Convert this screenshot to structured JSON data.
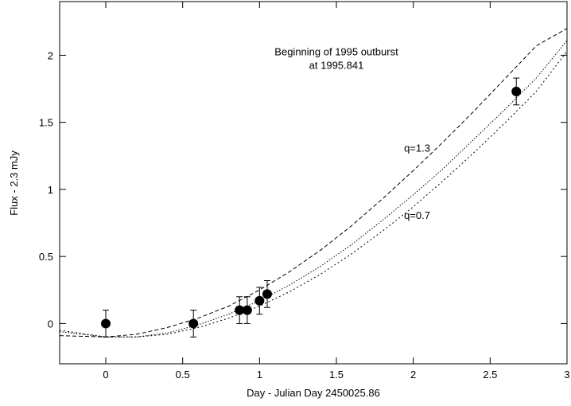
{
  "chart_data": {
    "type": "scatter",
    "title": "",
    "xlabel": "Day - Julian Day 2450025.86",
    "ylabel": "Flux - 2.3 mJy",
    "xlim": [
      -0.3,
      3.0
    ],
    "ylim": [
      -0.3,
      2.4
    ],
    "x_ticks": [
      0,
      0.5,
      1,
      1.5,
      2,
      2.5,
      3
    ],
    "x_tick_labels": [
      "0",
      "0.5",
      "1",
      "1.5",
      "2",
      "2.5",
      "3"
    ],
    "y_ticks": [
      0,
      0.5,
      1,
      1.5,
      2
    ],
    "y_tick_labels": [
      "0",
      "0.5",
      "1",
      "1.5",
      "2"
    ],
    "grid": false,
    "annotations": [
      {
        "text": "Beginning of 1995 outburst",
        "x": 1.5,
        "y": 2.0
      },
      {
        "text": "at 1995.841",
        "x": 1.5,
        "y": 1.9
      },
      {
        "text": "q=1.3",
        "x": 1.94,
        "y": 1.28
      },
      {
        "text": "q=0.7",
        "x": 1.94,
        "y": 0.78
      }
    ],
    "points": {
      "x": [
        0.0,
        0.57,
        0.87,
        0.92,
        1.0,
        1.05,
        2.67
      ],
      "y": [
        0.0,
        0.0,
        0.1,
        0.1,
        0.17,
        0.22,
        1.73
      ],
      "yerr": [
        0.1,
        0.1,
        0.1,
        0.1,
        0.1,
        0.1,
        0.1
      ]
    },
    "series": [
      {
        "name": "q=1.3",
        "style": "dashed",
        "x": [
          -0.3,
          0.0,
          0.2,
          0.4,
          0.6,
          0.8,
          1.0,
          1.2,
          1.4,
          1.6,
          1.8,
          2.0,
          2.2,
          2.4,
          2.6,
          2.8,
          3.0
        ],
        "y": [
          -0.09,
          -0.1,
          -0.08,
          -0.03,
          0.04,
          0.13,
          0.25,
          0.39,
          0.55,
          0.73,
          0.93,
          1.14,
          1.36,
          1.59,
          1.83,
          2.07,
          2.2
        ]
      },
      {
        "name": "",
        "style": "dotted",
        "x": [
          -0.3,
          0.0,
          0.2,
          0.4,
          0.6,
          0.8,
          1.0,
          1.2,
          1.4,
          1.6,
          1.8,
          2.0,
          2.2,
          2.4,
          2.6,
          2.8,
          3.0
        ],
        "y": [
          -0.06,
          -0.1,
          -0.1,
          -0.07,
          -0.01,
          0.07,
          0.17,
          0.29,
          0.43,
          0.59,
          0.77,
          0.96,
          1.16,
          1.38,
          1.6,
          1.83,
          2.11
        ]
      },
      {
        "name": "q=0.7",
        "style": "dotted-sparse",
        "x": [
          -0.3,
          0.0,
          0.2,
          0.4,
          0.6,
          0.8,
          1.0,
          1.2,
          1.4,
          1.6,
          1.8,
          2.0,
          2.2,
          2.4,
          2.6,
          2.8,
          3.0
        ],
        "y": [
          -0.05,
          -0.1,
          -0.1,
          -0.08,
          -0.03,
          0.04,
          0.13,
          0.24,
          0.37,
          0.52,
          0.69,
          0.87,
          1.07,
          1.28,
          1.5,
          1.73,
          2.03
        ]
      }
    ]
  }
}
